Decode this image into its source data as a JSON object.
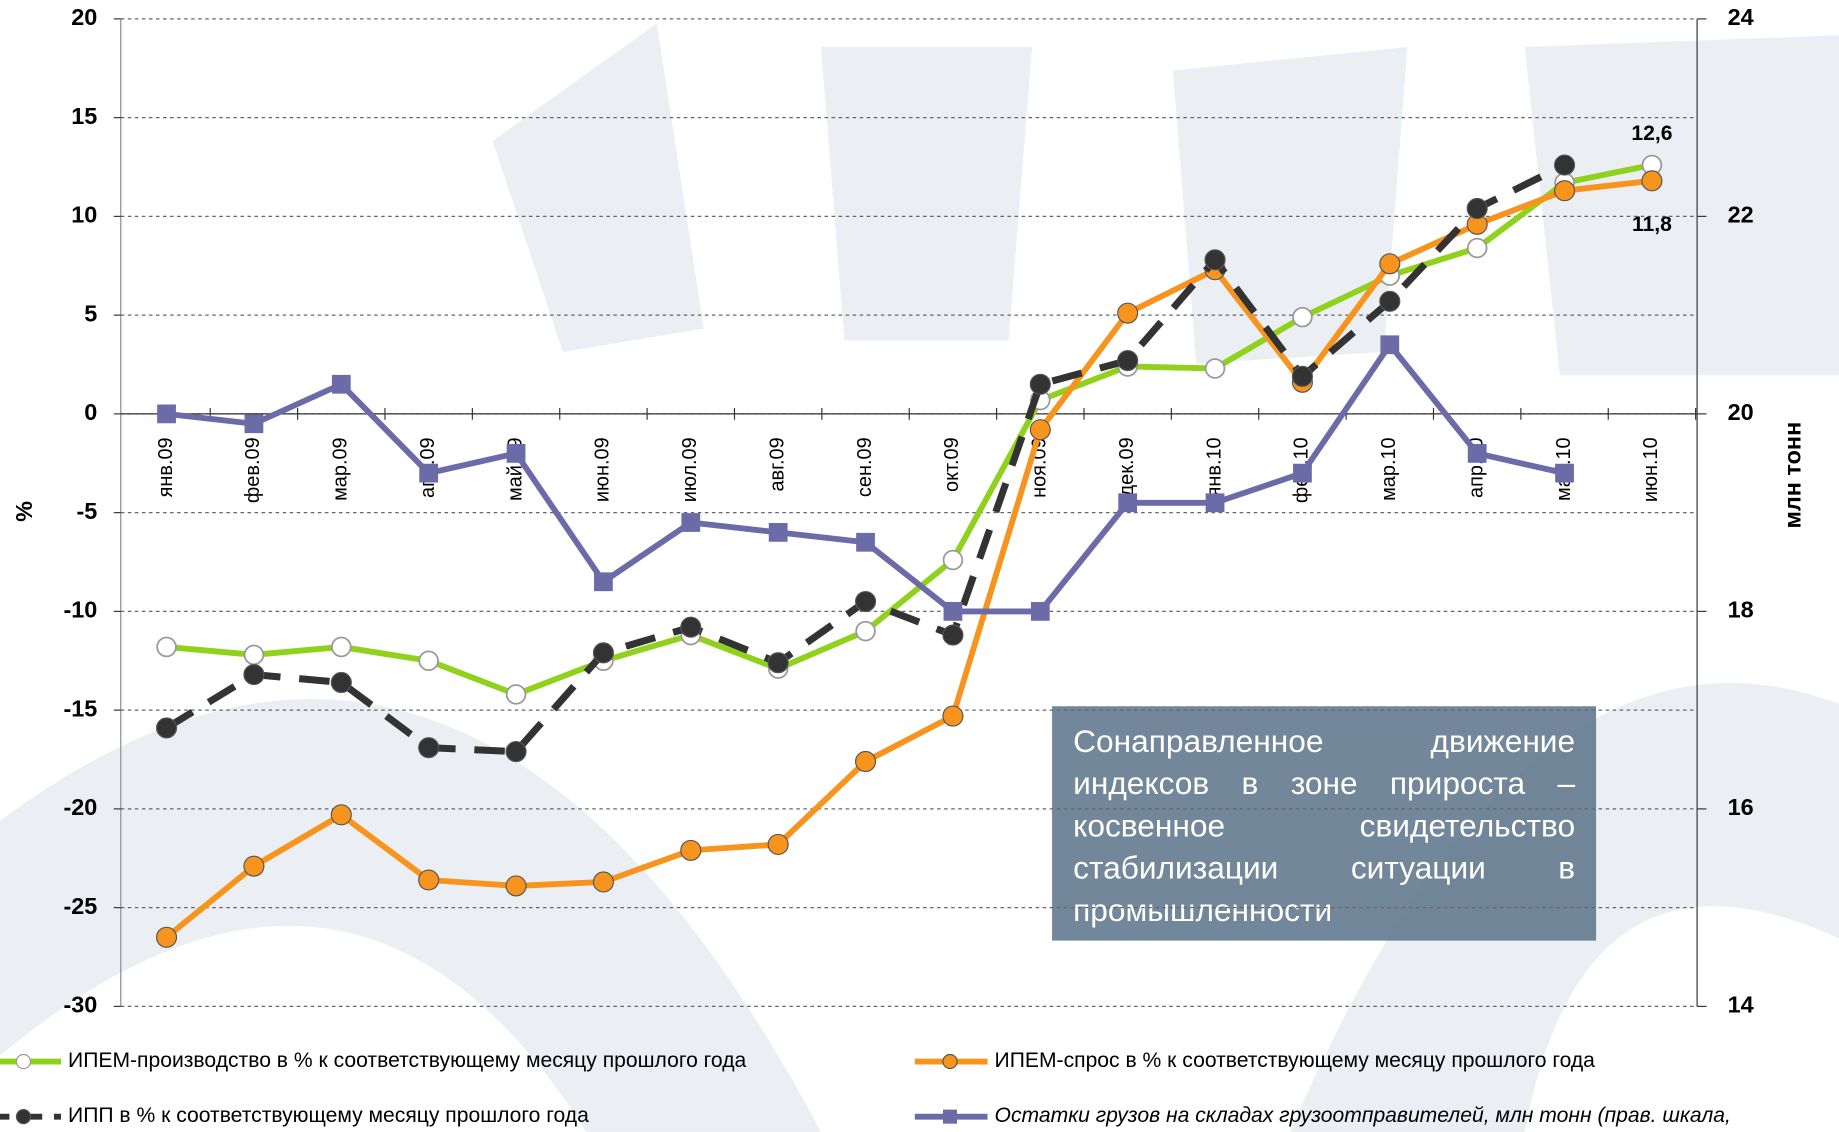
{
  "chart_data": {
    "type": "line",
    "y_label": "%",
    "y2_label": "млн тонн",
    "categories": [
      "янв.09",
      "фев.09",
      "мар.09",
      "апр.09",
      "май.09",
      "июн.09",
      "июл.09",
      "авг.09",
      "сен.09",
      "окт.09",
      "ноя.09",
      "дек.09",
      "янв.10",
      "фев.10",
      "мар.10",
      "апр.10",
      "май.10",
      "июн.10"
    ],
    "ylim": [
      -30,
      20
    ],
    "yticks": [
      -30,
      -25,
      -20,
      -15,
      -10,
      -5,
      0,
      5,
      10,
      15,
      20
    ],
    "y2lim": [
      14,
      24
    ],
    "y2ticks": [
      14,
      16,
      18,
      20,
      22,
      24
    ],
    "grid": true,
    "series": [
      {
        "name": "ИПЕМ-производство в % к соответствующему месяцу прошлого года",
        "color": "#8fd11b",
        "marker": "hollow-circle",
        "values": [
          -11.8,
          -12.2,
          -11.8,
          -12.5,
          -14.2,
          -12.5,
          -11.2,
          -12.9,
          -11.0,
          -7.4,
          0.7,
          2.4,
          2.3,
          4.9,
          7.0,
          8.4,
          11.7,
          12.6
        ],
        "value_labels": [
          null,
          null,
          null,
          null,
          null,
          null,
          null,
          null,
          null,
          null,
          null,
          null,
          null,
          null,
          null,
          null,
          null,
          "12,6"
        ],
        "value_label_position": "above"
      },
      {
        "name": "ИПЕМ-спрос в % к соответствующему месяцу прошлого года",
        "color": "#f7941d",
        "marker": "circle",
        "values": [
          -26.5,
          -22.9,
          -20.3,
          -23.6,
          -23.9,
          -23.7,
          -22.1,
          -21.8,
          -17.6,
          -15.3,
          -0.8,
          5.1,
          7.3,
          1.6,
          7.6,
          9.6,
          11.3,
          11.8
        ],
        "value_labels": [
          null,
          null,
          null,
          null,
          null,
          null,
          null,
          null,
          null,
          null,
          null,
          null,
          null,
          null,
          null,
          null,
          null,
          "11,8"
        ],
        "value_label_position": "below"
      },
      {
        "name": "ИПП в % к соответствующему месяцу прошлого года",
        "color": "#333333",
        "marker": "circle",
        "dashed": true,
        "values": [
          -15.9,
          -13.2,
          -13.6,
          -16.9,
          -17.1,
          -12.1,
          -10.8,
          -12.6,
          -9.5,
          -11.2,
          1.5,
          2.7,
          7.8,
          1.9,
          5.7,
          10.4,
          12.6,
          null
        ]
      },
      {
        "name": "Остатки грузов на складах грузоотправителей, млн тонн (прав. шкала,",
        "color": "#6b6ba8",
        "marker": "square",
        "axis": "y2",
        "italic": true,
        "values": [
          20.0,
          19.9,
          20.3,
          19.4,
          19.6,
          18.3,
          18.9,
          18.8,
          18.7,
          18.0,
          18.0,
          19.1,
          19.1,
          19.4,
          20.7,
          19.6,
          19.4,
          null
        ]
      }
    ],
    "annotation": "Сонаправленное движение индексов в зоне прироста – косвенное свидетельство стабилизации ситуации в промышленности"
  }
}
